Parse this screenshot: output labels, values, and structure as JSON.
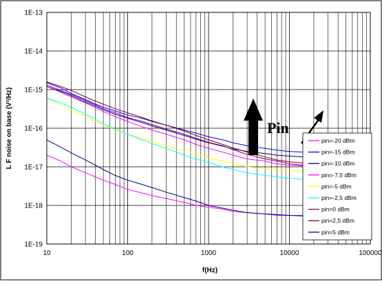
{
  "chart_data": {
    "type": "line",
    "title": "",
    "xlabel": "f(Hz)",
    "ylabel": "L F noise on base (V²/Hz)",
    "xscale": "log",
    "yscale": "log",
    "xlim": [
      10,
      100000
    ],
    "ylim": [
      1e-19,
      1e-13
    ],
    "grid": true,
    "x_ticks": [
      {
        "value": 10,
        "label": "10"
      },
      {
        "value": 100,
        "label": "100"
      },
      {
        "value": 1000,
        "label": "1000"
      },
      {
        "value": 10000,
        "label": "10000"
      },
      {
        "value": 100000,
        "label": "100000"
      }
    ],
    "y_ticks": [
      {
        "value": 1e-19,
        "label": "1E-19"
      },
      {
        "value": 1e-18,
        "label": "1E-18"
      },
      {
        "value": 1e-17,
        "label": "1E-17"
      },
      {
        "value": 1e-16,
        "label": "1E-16"
      },
      {
        "value": 1e-15,
        "label": "1E-15"
      },
      {
        "value": 1e-14,
        "label": "1E-14"
      },
      {
        "value": 1e-13,
        "label": "1E-13"
      }
    ],
    "legend_position": "bottom-right",
    "x": [
      10,
      15,
      20,
      30,
      40,
      50,
      70,
      100,
      150,
      200,
      300,
      500,
      700,
      1000,
      1500,
      2000,
      3000,
      5000,
      7000,
      10000,
      15000,
      20000,
      30000,
      50000,
      70000,
      100000
    ],
    "series": [
      {
        "name": "pin=-20 dBm",
        "color": "#ff00ff",
        "values": [
          2e-17,
          1.4e-17,
          1e-17,
          7e-18,
          5.5e-18,
          4.5e-18,
          3.5e-18,
          2.6e-18,
          2.1e-18,
          1.8e-18,
          1.5e-18,
          1.2e-18,
          1e-18,
          9e-19,
          8e-19,
          7e-19,
          6.5e-19,
          6e-19,
          5.5e-19,
          5.5e-19,
          5.5e-19,
          null,
          null,
          null,
          null,
          null
        ]
      },
      {
        "name": "pin=-15 dBm",
        "color": "#0000ff",
        "values": [
          1.5e-15,
          1.1e-15,
          8e-16,
          5.5e-16,
          4.2e-16,
          3.5e-16,
          2.8e-16,
          2.2e-16,
          1.8e-16,
          1.5e-16,
          1.2e-16,
          9e-17,
          7.5e-17,
          6e-17,
          5e-17,
          4.2e-17,
          3.5e-17,
          3e-17,
          2.7e-17,
          2.5e-17,
          2.4e-17,
          null,
          null,
          null,
          null,
          null
        ]
      },
      {
        "name": "pin=-10 dBm",
        "color": "#000080",
        "values": [
          1.2e-15,
          9e-16,
          7e-16,
          4.8e-16,
          3.7e-16,
          3e-16,
          2.3e-16,
          1.8e-16,
          1.4e-16,
          1.15e-16,
          9e-17,
          6.5e-17,
          5.2e-17,
          4.2e-17,
          3.4e-17,
          2.9e-17,
          2.5e-17,
          2.2e-17,
          2e-17,
          1.9e-17,
          1.8e-17,
          null,
          null,
          null,
          null,
          null
        ]
      },
      {
        "name": "pin=-7,5 dBm",
        "color": "#ff00ff",
        "values": [
          1.2e-15,
          8.5e-16,
          6.5e-16,
          4.5e-16,
          3.4e-16,
          2.7e-16,
          2e-16,
          1.5e-16,
          1.1e-16,
          9e-17,
          7e-17,
          5e-17,
          3.8e-17,
          3e-17,
          2.4e-17,
          2e-17,
          1.6e-17,
          1.4e-17,
          1.2e-17,
          1.1e-17,
          1.05e-17,
          null,
          null,
          null,
          null,
          null
        ]
      },
      {
        "name": "pin=-5 dBm",
        "color": "#ffff00",
        "values": [
          6e-16,
          4e-16,
          3e-16,
          2e-16,
          1.5e-16,
          1.2e-16,
          9e-17,
          7e-17,
          5.5e-17,
          4.5e-17,
          3.5e-17,
          2.6e-17,
          2.1e-17,
          1.7e-17,
          1.4e-17,
          1.2e-17,
          1e-17,
          9e-18,
          8.5e-18,
          8e-18,
          7.8e-18,
          null,
          null,
          null,
          null,
          null
        ]
      },
      {
        "name": "pin=-2,5 dBm",
        "color": "#00ffff",
        "values": [
          6e-16,
          4.5e-16,
          3.5e-16,
          2.3e-16,
          1.7e-16,
          1.3e-16,
          9.5e-17,
          7e-17,
          5e-17,
          4e-17,
          3e-17,
          2e-17,
          1.6e-17,
          1.3e-17,
          1e-17,
          8.5e-18,
          7e-18,
          6e-18,
          5.5e-18,
          5e-18,
          4.8e-18,
          null,
          null,
          null,
          null,
          null
        ]
      },
      {
        "name": "pin=0 dBm",
        "color": "#800080",
        "values": [
          1.3e-15,
          9.5e-16,
          7.5e-16,
          5.2e-16,
          4e-16,
          3.2e-16,
          2.5e-16,
          1.9e-16,
          1.5e-16,
          1.25e-16,
          9.5e-17,
          7e-17,
          5.5e-17,
          4.3e-17,
          3.5e-17,
          2.8e-17,
          2.1e-17,
          1.6e-17,
          1.4e-17,
          1.2e-17,
          1.1e-17,
          null,
          null,
          null,
          null,
          null
        ]
      },
      {
        "name": "pin=2,5 dBm",
        "color": "#800000",
        "values": [
          1.6e-15,
          1.2e-15,
          9.5e-16,
          6.5e-16,
          5e-16,
          4.2e-16,
          3.2e-16,
          2.5e-16,
          1.9e-16,
          1.55e-16,
          1.2e-16,
          8.5e-17,
          6.5e-17,
          5e-17,
          3.8e-17,
          3.1e-17,
          2.4e-17,
          1.8e-17,
          1.5e-17,
          1.35e-17,
          1.25e-17,
          null,
          null,
          null,
          null,
          null
        ]
      },
      {
        "name": "pin=5 dBm",
        "color": "#000080",
        "values": [
          5e-17,
          3.2e-17,
          2.3e-17,
          1.5e-17,
          1.1e-17,
          8.5e-18,
          6e-18,
          4.5e-18,
          3.5e-18,
          2.9e-18,
          2.2e-18,
          1.6e-18,
          1.3e-18,
          1e-18,
          8.5e-19,
          7.5e-19,
          6.5e-19,
          6e-19,
          5.8e-19,
          5.5e-19,
          5.3e-19,
          null,
          null,
          null,
          null,
          null
        ]
      }
    ],
    "annotations": [
      {
        "type": "text",
        "label": "Pin"
      },
      {
        "type": "arrow",
        "direction": "up"
      },
      {
        "type": "arrow",
        "direction": "up-right"
      }
    ]
  }
}
